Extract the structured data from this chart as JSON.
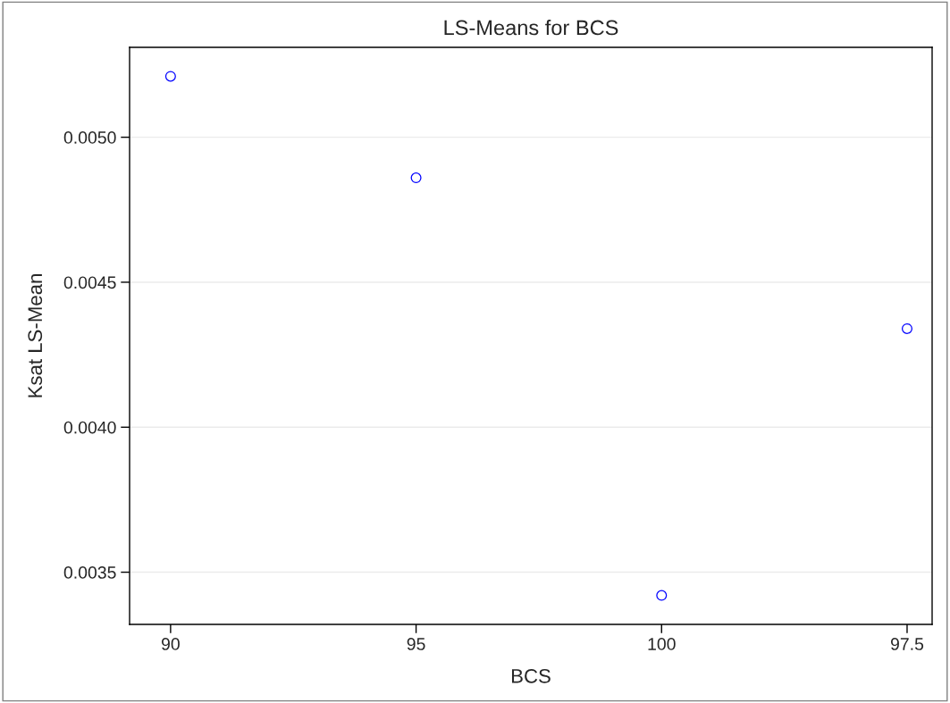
{
  "chart_data": {
    "type": "scatter",
    "title": "LS-Means for BCS",
    "xlabel": "BCS",
    "ylabel": "Ksat LS-Mean",
    "categories": [
      "90",
      "95",
      "100",
      "97.5"
    ],
    "series": [
      {
        "color": "#0000ff",
        "values": [
          0.00521,
          0.00486,
          0.00342,
          0.00434
        ]
      }
    ],
    "ylim": [
      0.00332,
      0.00531
    ],
    "yticks": [
      {
        "value": 0.0035,
        "label": "0.0035"
      },
      {
        "value": 0.004,
        "label": "0.0040"
      },
      {
        "value": 0.0045,
        "label": "0.0045"
      },
      {
        "value": 0.005,
        "label": "0.0050"
      }
    ],
    "grid": "y",
    "marker": "circle",
    "legend": false
  }
}
